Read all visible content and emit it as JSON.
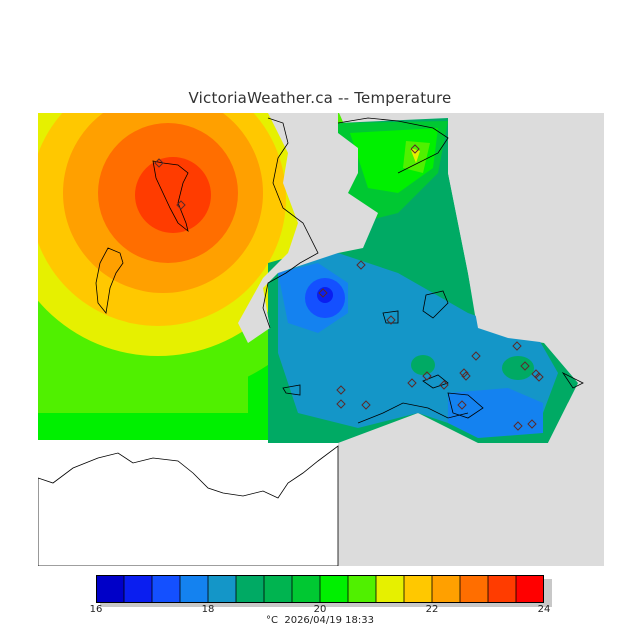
{
  "title": "VictoriaWeather.ca -- Temperature",
  "colors": {
    "background": "#ffffff",
    "no_data": "#dcdcdc",
    "land_outline": "#000000"
  },
  "colorbar": {
    "min": 16,
    "max": 24,
    "tick_labels": [
      "16",
      "18",
      "20",
      "22",
      "24"
    ],
    "ticks": [
      16,
      18,
      20,
      22,
      24
    ],
    "colors": [
      "#0a0a8c",
      "#0000c8",
      "#0a1ef0",
      "#1450ff",
      "#1482f0",
      "#1496c8",
      "#00aa64",
      "#00b450",
      "#00c832",
      "#00f000",
      "#50f000",
      "#e6f000",
      "#ffc800",
      "#ffa000",
      "#ff6e00",
      "#ff3c00",
      "#ff0000"
    ]
  },
  "footer": {
    "unit": "°C",
    "timestamp": "2026/04/19 18:33"
  },
  "map": {
    "stations": 22
  }
}
